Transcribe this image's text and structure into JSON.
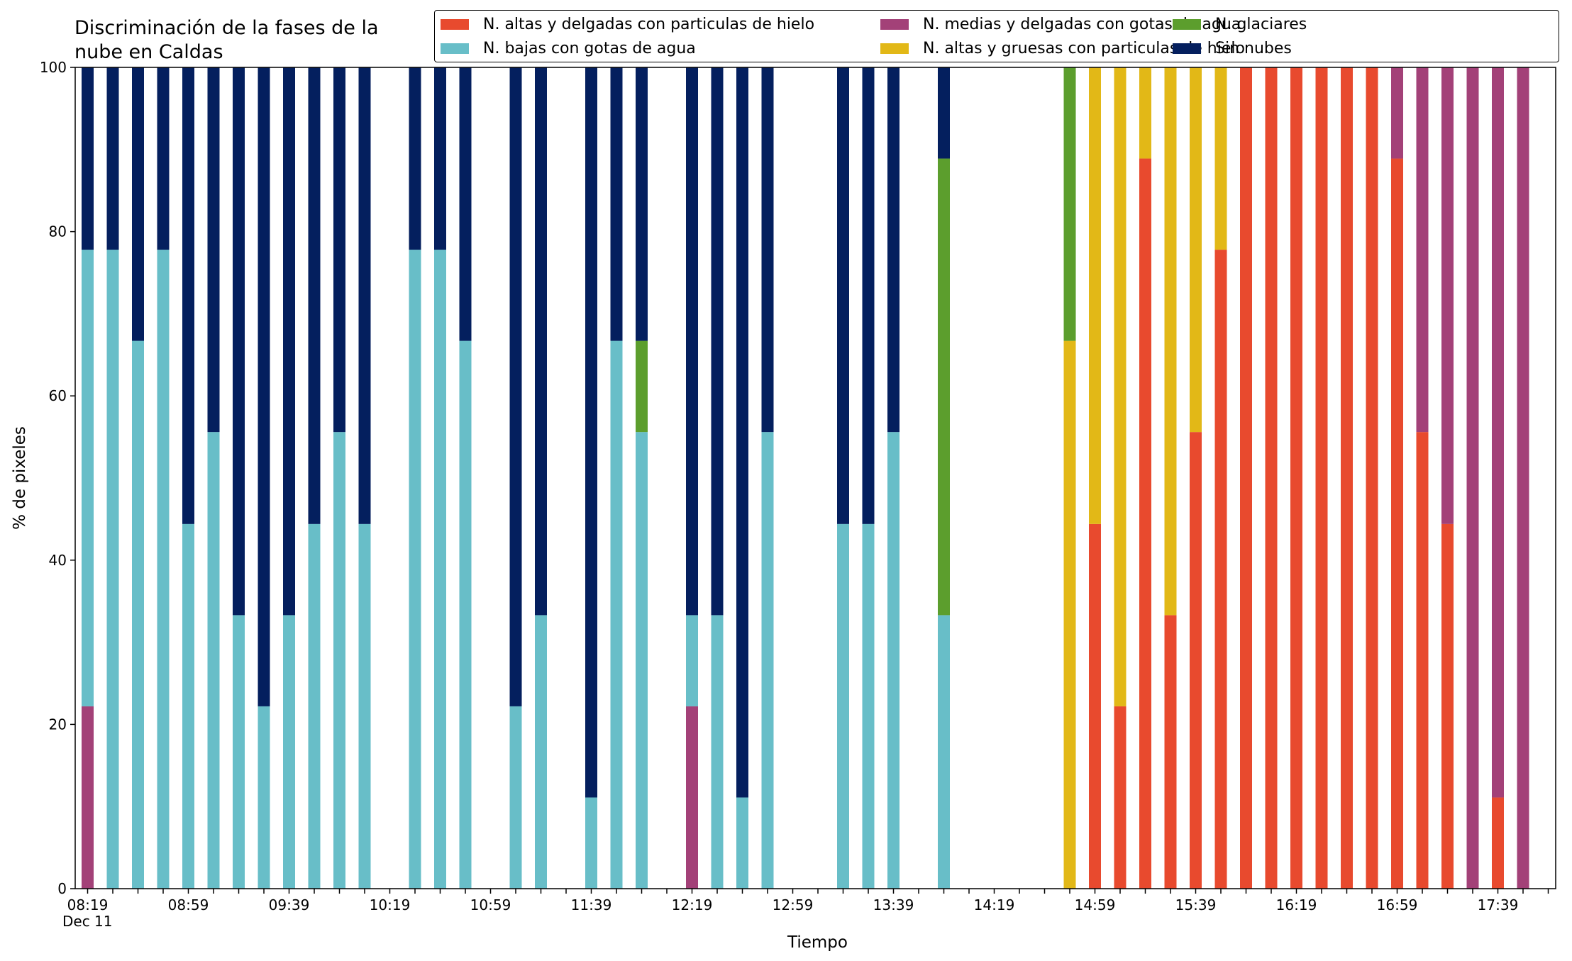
{
  "chart_data": {
    "type": "bar",
    "stacked": true,
    "title_lines": [
      "Discriminación de la fases de la",
      "nube en Caldas"
    ],
    "xlabel": "Tiempo",
    "ylabel": "% de pixeles",
    "date_label": "Dec 11",
    "ylim": [
      0,
      100
    ],
    "yticks": [
      0,
      20,
      40,
      60,
      80,
      100
    ],
    "x_tick_labels": [
      "08:19",
      "08:59",
      "09:39",
      "10:19",
      "10:59",
      "11:39",
      "12:19",
      "12:59",
      "13:39",
      "14:19",
      "14:59",
      "15:39",
      "16:19",
      "16:59",
      "17:39"
    ],
    "x_start": "08:19",
    "x_step_minutes": 10,
    "num_slots": 59,
    "legend_position": "top-right",
    "series": [
      {
        "name": "N. altas y delgadas con particulas de hielo",
        "color": "#e84a2e"
      },
      {
        "name": "N. altas y gruesas con particulas de hielo",
        "color": "#e2b817"
      },
      {
        "name": "N. medias y delgadas con gotas de agua",
        "color": "#a34178"
      },
      {
        "name": "N. bajas con gotas de agua",
        "color": "#68bec8"
      },
      {
        "name": "N. glaciares",
        "color": "#5c9e2d"
      },
      {
        "name": "Sin nubes",
        "color": "#041f5e"
      }
    ],
    "legend_order": [
      0,
      3,
      2,
      1,
      4,
      5
    ],
    "bars": [
      {
        "time": "08:19",
        "values": [
          0,
          0,
          22.2,
          55.6,
          0,
          22.2
        ]
      },
      {
        "time": "08:29",
        "values": [
          0,
          0,
          0,
          77.8,
          0,
          22.2
        ]
      },
      {
        "time": "08:39",
        "values": [
          0,
          0,
          0,
          66.7,
          0,
          33.3
        ]
      },
      {
        "time": "08:49",
        "values": [
          0,
          0,
          0,
          77.8,
          0,
          22.2
        ]
      },
      {
        "time": "08:59",
        "values": [
          0,
          0,
          0,
          44.4,
          0,
          55.6
        ]
      },
      {
        "time": "09:09",
        "values": [
          0,
          0,
          0,
          55.6,
          0,
          44.4
        ]
      },
      {
        "time": "09:19",
        "values": [
          0,
          0,
          0,
          33.3,
          0,
          66.7
        ]
      },
      {
        "time": "09:29",
        "values": [
          0,
          0,
          0,
          22.2,
          0,
          77.8
        ]
      },
      {
        "time": "09:39",
        "values": [
          0,
          0,
          0,
          33.3,
          0,
          66.7
        ]
      },
      {
        "time": "09:49",
        "values": [
          0,
          0,
          0,
          44.4,
          0,
          55.6
        ]
      },
      {
        "time": "09:59",
        "values": [
          0,
          0,
          0,
          55.6,
          0,
          44.4
        ]
      },
      {
        "time": "10:09",
        "values": [
          0,
          0,
          0,
          44.4,
          0,
          55.6
        ]
      },
      {
        "time": "10:29",
        "values": [
          0,
          0,
          0,
          77.8,
          0,
          22.2
        ]
      },
      {
        "time": "10:39",
        "values": [
          0,
          0,
          0,
          77.8,
          0,
          22.2
        ]
      },
      {
        "time": "10:49",
        "values": [
          0,
          0,
          0,
          66.7,
          0,
          33.3
        ]
      },
      {
        "time": "11:09",
        "values": [
          0,
          0,
          0,
          22.2,
          0,
          77.8
        ]
      },
      {
        "time": "11:19",
        "values": [
          0,
          0,
          0,
          33.3,
          0,
          66.7
        ]
      },
      {
        "time": "11:39",
        "values": [
          0,
          0,
          0,
          11.1,
          0,
          88.9
        ]
      },
      {
        "time": "11:49",
        "values": [
          0,
          0,
          0,
          66.7,
          0,
          33.3
        ]
      },
      {
        "time": "11:59",
        "values": [
          0,
          0,
          0,
          55.6,
          11.1,
          33.3
        ]
      },
      {
        "time": "12:19",
        "values": [
          0,
          0,
          22.2,
          11.1,
          0,
          66.7
        ]
      },
      {
        "time": "12:29",
        "values": [
          0,
          0,
          0,
          33.3,
          0,
          66.7
        ]
      },
      {
        "time": "12:39",
        "values": [
          0,
          0,
          0,
          11.1,
          0,
          88.9
        ]
      },
      {
        "time": "12:49",
        "values": [
          0,
          0,
          0,
          55.6,
          0,
          44.4
        ]
      },
      {
        "time": "13:19",
        "values": [
          0,
          0,
          0,
          44.4,
          0,
          55.6
        ]
      },
      {
        "time": "13:29",
        "values": [
          0,
          0,
          0,
          44.4,
          0,
          55.6
        ]
      },
      {
        "time": "13:39",
        "values": [
          0,
          0,
          0,
          55.6,
          0,
          44.4
        ]
      },
      {
        "time": "13:59",
        "values": [
          0,
          0,
          0,
          33.3,
          55.6,
          11.1
        ]
      },
      {
        "time": "14:49",
        "values": [
          0,
          66.7,
          0,
          0,
          33.3,
          0
        ]
      },
      {
        "time": "14:59",
        "values": [
          44.4,
          55.6,
          0,
          0,
          0,
          0
        ]
      },
      {
        "time": "15:09",
        "values": [
          22.2,
          77.8,
          0,
          0,
          0,
          0
        ]
      },
      {
        "time": "15:19",
        "values": [
          88.9,
          11.1,
          0,
          0,
          0,
          0
        ]
      },
      {
        "time": "15:29",
        "values": [
          33.3,
          66.7,
          0,
          0,
          0,
          0
        ]
      },
      {
        "time": "15:39",
        "values": [
          55.6,
          44.4,
          0,
          0,
          0,
          0
        ]
      },
      {
        "time": "15:49",
        "values": [
          77.8,
          22.2,
          0,
          0,
          0,
          0
        ]
      },
      {
        "time": "15:59",
        "values": [
          100,
          0,
          0,
          0,
          0,
          0
        ]
      },
      {
        "time": "16:09",
        "values": [
          100,
          0,
          0,
          0,
          0,
          0
        ]
      },
      {
        "time": "16:19",
        "values": [
          100,
          0,
          0,
          0,
          0,
          0
        ]
      },
      {
        "time": "16:29",
        "values": [
          100,
          0,
          0,
          0,
          0,
          0
        ]
      },
      {
        "time": "16:39",
        "values": [
          100,
          0,
          0,
          0,
          0,
          0
        ]
      },
      {
        "time": "16:49",
        "values": [
          100,
          0,
          0,
          0,
          0,
          0
        ]
      },
      {
        "time": "16:59",
        "values": [
          88.9,
          0,
          11.1,
          0,
          0,
          0
        ]
      },
      {
        "time": "17:09",
        "values": [
          55.6,
          0,
          44.4,
          0,
          0,
          0
        ]
      },
      {
        "time": "17:19",
        "values": [
          44.4,
          0,
          55.6,
          0,
          0,
          0
        ]
      },
      {
        "time": "17:29",
        "values": [
          0,
          0,
          100,
          0,
          0,
          0
        ]
      },
      {
        "time": "17:39",
        "values": [
          11.1,
          0,
          88.9,
          0,
          0,
          0
        ]
      },
      {
        "time": "17:49",
        "values": [
          0,
          0,
          100,
          0,
          0,
          0
        ]
      }
    ]
  }
}
